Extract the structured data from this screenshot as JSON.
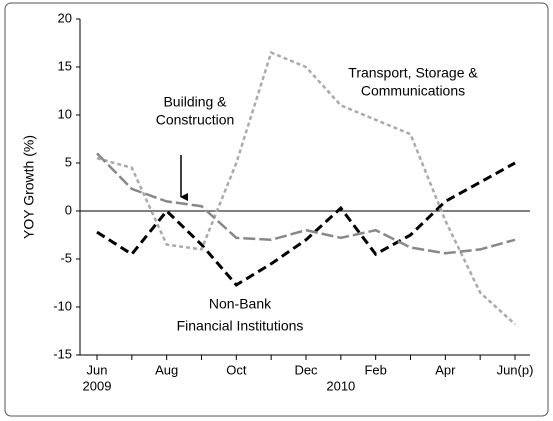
{
  "chart_data": {
    "type": "line",
    "ylabel": "YOY Growth (%)",
    "categories": [
      "Jun",
      null,
      "Aug",
      null,
      "Oct",
      null,
      "Dec",
      null,
      "Feb",
      null,
      "Apr",
      null,
      "Jun(p)"
    ],
    "x_groups": [
      {
        "label": "2009",
        "start": 0
      },
      {
        "label": "2010",
        "start": 7
      }
    ],
    "ylim": [
      -15,
      20
    ],
    "yticks": [
      -15,
      -10,
      -5,
      0,
      5,
      10,
      15,
      20
    ],
    "series": [
      {
        "label_lines": [
          "Non-Bank",
          "Financial Institutions"
        ],
        "color": "#000000",
        "values": [
          -2.2,
          -4.5,
          0,
          -3.5,
          -7.7,
          -5.5,
          -3,
          0.3,
          -4.5,
          -2.5,
          1,
          3,
          5
        ]
      },
      {
        "label_lines": [
          "Transport, Storage &",
          "Communications"
        ],
        "color": "#aaaaaa",
        "values": [
          5.5,
          4.5,
          -3.5,
          -4,
          5,
          16.5,
          15,
          11,
          9.5,
          8,
          -1,
          -8.5,
          -11.8
        ]
      },
      {
        "label_lines": [
          "Building &",
          "Construction"
        ],
        "color": "#888888",
        "values": [
          6,
          2.3,
          1,
          0.5,
          -2.8,
          -3,
          -2,
          -2.8,
          -2,
          -3.8,
          -4.4,
          -4,
          -3
        ]
      }
    ]
  }
}
